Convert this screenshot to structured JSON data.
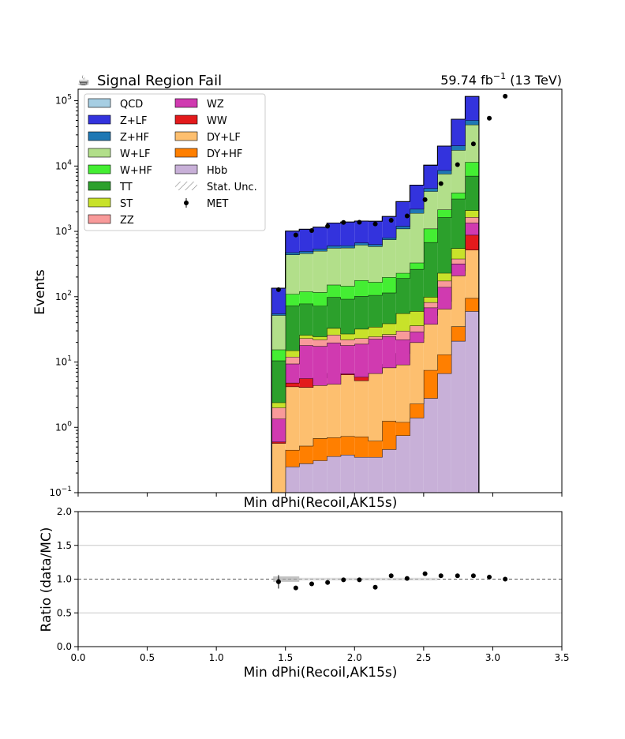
{
  "header": {
    "title_icon": "coffee-cup-icon",
    "title_glyph": "☕",
    "title": "Signal Region Fail",
    "lumi_value": "59.74 fb",
    "lumi_exp": "−1",
    "lumi_energy": " (13 TeV)"
  },
  "chart_data": [
    {
      "type": "area",
      "panel": "main",
      "xlabel": "Min dPhi(Recoil,AK15s)",
      "ylabel": "Events",
      "yscale": "log",
      "xlim": [
        0,
        3.5
      ],
      "ylim": [
        0.1,
        150000
      ],
      "bin_edges": [
        1.4,
        1.5,
        1.6,
        1.7,
        1.8,
        1.9,
        2.0,
        2.1,
        2.2,
        2.3,
        2.4,
        2.5,
        2.6,
        2.7,
        2.8,
        2.9,
        3.0,
        3.1
      ],
      "series_order_bottom_to_top": [
        "Hbb",
        "DY+HF",
        "DY+LF",
        "WW",
        "WZ",
        "ZZ",
        "ST",
        "TT",
        "W+HF",
        "W+LF",
        "Z+HF",
        "Z+LF",
        "QCD"
      ],
      "stack": [
        {
          "name": "Hbb",
          "color": "#c8b0d8",
          "values": [
            0.07,
            0.25,
            0.28,
            0.31,
            0.36,
            0.38,
            0.35,
            0.35,
            0.46,
            0.75,
            1.4,
            2.8,
            6.7,
            21,
            60,
            0,
            0
          ]
        },
        {
          "name": "DY+HF",
          "color": "#ff7f00",
          "values": [
            0.08,
            0.45,
            0.52,
            0.68,
            0.7,
            0.73,
            0.72,
            0.62,
            1.25,
            1.2,
            2.3,
            7.5,
            13,
            35,
            95,
            0,
            0
          ]
        },
        {
          "name": "DY+LF",
          "color": "#fdbf6f",
          "values": [
            0.57,
            4.2,
            4.1,
            5.7,
            6.7,
            6.4,
            5.2,
            6.8,
            9.2,
            13.5,
            23,
            52,
            85,
            250,
            520,
            0,
            0
          ]
        },
        {
          "name": "WW",
          "color": "#e31a1c",
          "values": [
            0.6,
            4.8,
            5.6,
            4.4,
            4.6,
            6.6,
            5.9,
            6.7,
            8.2,
            9.1,
            20,
            38,
            65,
            210,
            880,
            0,
            0
          ]
        },
        {
          "name": "WZ",
          "color": "#d03ab0",
          "values": [
            1.35,
            9.4,
            18,
            17.5,
            19.7,
            18,
            18.9,
            22.5,
            24.7,
            22,
            29,
            68,
            140,
            320,
            1350,
            0,
            0
          ]
        },
        {
          "name": "ZZ",
          "color": "#f89a9a",
          "values": [
            2.0,
            12,
            23,
            22,
            26,
            22,
            23,
            24.5,
            26.5,
            30,
            36,
            82,
            175,
            380,
            1650,
            0,
            0
          ]
        },
        {
          "name": "ST",
          "color": "#c8e22a",
          "values": [
            2.4,
            15,
            25.8,
            24.5,
            33,
            27,
            32,
            34.5,
            38.8,
            55.5,
            60,
            99,
            230,
            550,
            2100,
            0,
            0
          ]
        },
        {
          "name": "TT",
          "color": "#2ca02c",
          "values": [
            10.5,
            73,
            78,
            72,
            98,
            92,
            102,
            105.5,
            115,
            192,
            264,
            680,
            1640,
            3150,
            7050,
            0,
            0
          ]
        },
        {
          "name": "W+HF",
          "color": "#44ee33",
          "values": [
            15.5,
            110,
            120,
            117,
            152,
            146,
            178,
            167.5,
            199,
            230,
            331,
            1100,
            2150,
            3900,
            11500,
            0,
            0
          ]
        },
        {
          "name": "W+LF",
          "color": "#b2df8a",
          "values": [
            52,
            440,
            460,
            500,
            555,
            560,
            620,
            590,
            750,
            1100,
            1900,
            4100,
            7600,
            17500,
            43000,
            0,
            0
          ]
        },
        {
          "name": "Z+HF",
          "color": "#1f78b4",
          "values": [
            55,
            475,
            495,
            540,
            600,
            605,
            668,
            631,
            800,
            1200,
            2200,
            4550,
            8600,
            20500,
            50000,
            0,
            0
          ]
        },
        {
          "name": "Z+LF",
          "color": "#3333dd",
          "values": [
            135,
            1010,
            1080,
            1160,
            1340,
            1390,
            1440,
            1430,
            1690,
            2860,
            5100,
            10300,
            20200,
            52000,
            116000,
            0,
            0
          ]
        },
        {
          "name": "QCD",
          "color": "#a6cee3",
          "values": [
            135,
            1010,
            1080,
            1160,
            1340,
            1390,
            1440,
            1430,
            1690,
            2860,
            5100,
            10300,
            20200,
            52000,
            116000,
            0,
            0
          ]
        }
      ],
      "data_points": {
        "name": "MET",
        "x": [
          1.45,
          1.575,
          1.69,
          1.805,
          1.92,
          2.035,
          2.15,
          2.265,
          2.38,
          2.51,
          2.625,
          2.745,
          2.86,
          2.975,
          3.09
        ],
        "y": [
          128,
          880,
          1030,
          1200,
          1370,
          1380,
          1300,
          1480,
          1720,
          3060,
          5400,
          10500,
          21800,
          54000,
          117000
        ]
      },
      "legend": {
        "position": "top-left",
        "columns": [
          [
            "QCD",
            "Z+LF",
            "Z+HF",
            "W+LF",
            "W+HF",
            "TT",
            "ST",
            "ZZ"
          ],
          [
            "WZ",
            "WW",
            "DY+LF",
            "DY+HF",
            "Hbb",
            "Stat. Unc.",
            "MET"
          ]
        ]
      },
      "y_tick_labels": [
        "10",
        "10",
        "10",
        "10",
        "10",
        "10",
        "10"
      ],
      "y_tick_exponents": [
        "−1",
        "0",
        "1",
        "2",
        "3",
        "4",
        "5"
      ]
    },
    {
      "type": "scatter",
      "panel": "ratio",
      "xlabel": "Min dPhi(Recoil,AK15s)",
      "ylabel": "Ratio (data/MC)",
      "xlim": [
        0.0,
        3.5
      ],
      "ylim": [
        0.0,
        2.0
      ],
      "grid": true,
      "reference_line": 1.0,
      "x_tick_labels": [
        "0.0",
        "0.5",
        "1.0",
        "1.5",
        "2.0",
        "2.5",
        "3.0",
        "3.5"
      ],
      "y_tick_labels": [
        "0.0",
        "0.5",
        "1.0",
        "1.5",
        "2.0"
      ],
      "uncertainty_band": {
        "x": [
          1.4,
          1.6
        ],
        "half_width": 0.04
      },
      "x": [
        1.45,
        1.575,
        1.69,
        1.805,
        1.92,
        2.035,
        2.15,
        2.265,
        2.38,
        2.51,
        2.625,
        2.745,
        2.86,
        2.975,
        3.09
      ],
      "y": [
        0.96,
        0.87,
        0.93,
        0.95,
        0.99,
        0.99,
        0.88,
        1.05,
        1.01,
        1.08,
        1.05,
        1.05,
        1.05,
        1.03,
        1.0
      ]
    }
  ]
}
